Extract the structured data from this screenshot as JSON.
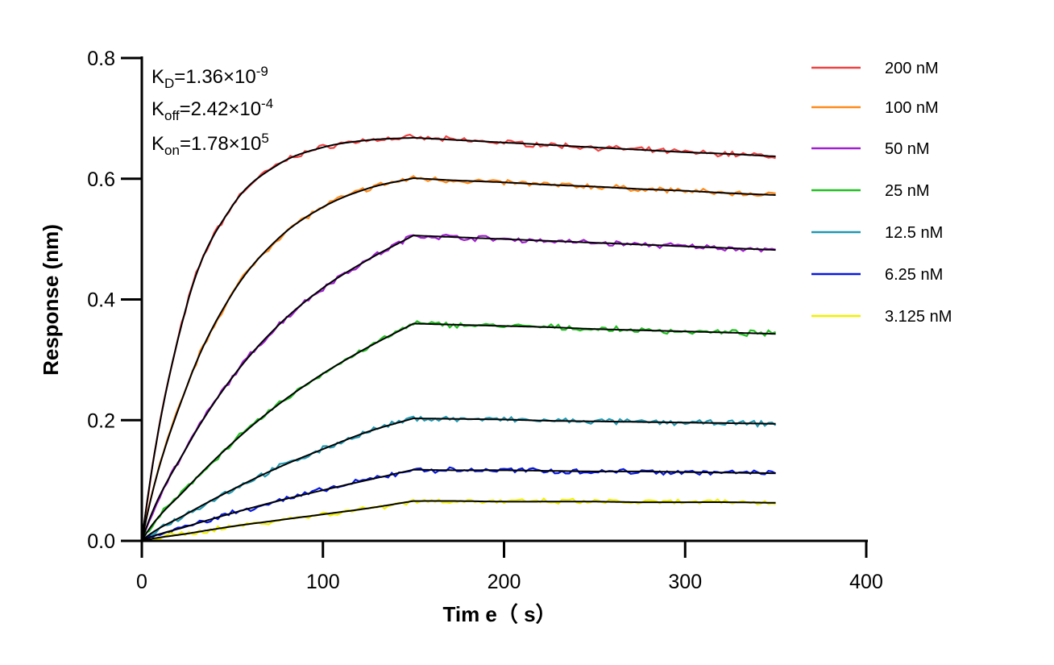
{
  "chart_data": {
    "type": "line",
    "xlabel": "Tim e（ s）",
    "ylabel": "Response (nm)",
    "xlim": [
      0,
      400
    ],
    "ylim": [
      0,
      0.8
    ],
    "xticks": [
      "0",
      "100",
      "200",
      "300",
      "400"
    ],
    "yticks": [
      "0.0",
      "0.2",
      "0.4",
      "0.6",
      "0.8"
    ],
    "grid": false,
    "legend_position": "top-right",
    "annotations": {
      "kd": {
        "label": "K",
        "sub": "D",
        "value": "=1.36×10",
        "exp": "-9"
      },
      "koff": {
        "label": "K",
        "sub": "off",
        "value": "=2.42×10",
        "exp": "-4"
      },
      "kon": {
        "label": "K",
        "sub": "on",
        "value": "=1.78×10",
        "exp": "5"
      }
    },
    "fit_color": "#000000",
    "x": [
      0,
      25,
      50,
      75,
      100,
      125,
      150,
      175,
      200,
      225,
      250,
      275,
      300,
      325,
      350
    ],
    "series": [
      {
        "name": "200 nM",
        "color": "#f04444",
        "values": [
          0,
          0.392,
          0.555,
          0.623,
          0.652,
          0.664,
          0.668,
          0.664,
          0.66,
          0.656,
          0.652,
          0.648,
          0.644,
          0.641,
          0.637
        ]
      },
      {
        "name": "100 nM",
        "color": "#ff8a1a",
        "values": [
          0,
          0.257,
          0.41,
          0.5,
          0.553,
          0.584,
          0.601,
          0.597,
          0.594,
          0.59,
          0.587,
          0.583,
          0.58,
          0.576,
          0.573
        ]
      },
      {
        "name": "50 nM",
        "color": "#a020d0",
        "values": [
          0,
          0.156,
          0.271,
          0.356,
          0.419,
          0.466,
          0.506,
          0.503,
          0.5,
          0.497,
          0.494,
          0.491,
          0.488,
          0.485,
          0.482
        ]
      },
      {
        "name": "25 nM",
        "color": "#22c022",
        "values": [
          0,
          0.088,
          0.162,
          0.225,
          0.277,
          0.321,
          0.36,
          0.358,
          0.356,
          0.354,
          0.351,
          0.349,
          0.347,
          0.345,
          0.343
        ]
      },
      {
        "name": "12.5 nM",
        "color": "#2098b0",
        "values": [
          0,
          0.045,
          0.085,
          0.121,
          0.152,
          0.181,
          0.203,
          0.202,
          0.201,
          0.199,
          0.198,
          0.197,
          0.196,
          0.195,
          0.194
        ]
      },
      {
        "name": "6.25 nM",
        "color": "#0818e0",
        "values": [
          0,
          0.024,
          0.046,
          0.066,
          0.084,
          0.101,
          0.118,
          0.117,
          0.117,
          0.116,
          0.115,
          0.115,
          0.114,
          0.113,
          0.112
        ]
      },
      {
        "name": "3.125 nM",
        "color": "#f0f000",
        "values": [
          0,
          0.012,
          0.024,
          0.034,
          0.044,
          0.054,
          0.066,
          0.066,
          0.065,
          0.065,
          0.065,
          0.064,
          0.064,
          0.064,
          0.063
        ]
      }
    ]
  }
}
